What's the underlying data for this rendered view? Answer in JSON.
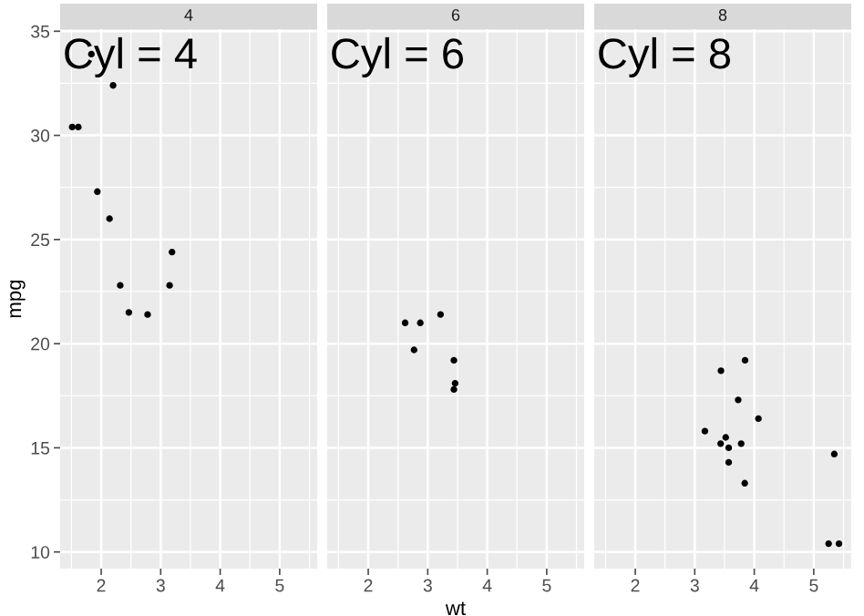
{
  "chart_data": [
    {
      "type": "scatter",
      "title": "4",
      "ylabel": "mpg",
      "annotations": [
        "Cyl = 4"
      ],
      "color": "#000000",
      "marker": "circle",
      "grid": true,
      "tick_labels": "xy",
      "x": [
        2.32,
        3.19,
        3.15,
        2.2,
        1.615,
        1.835,
        2.465,
        1.935,
        2.14,
        1.513,
        2.78
      ],
      "values": [
        22.8,
        24.4,
        22.8,
        32.4,
        30.4,
        33.9,
        21.5,
        27.3,
        26.0,
        30.4,
        21.4
      ],
      "xlim": [
        1.31,
        5.63
      ],
      "xticks": [
        2,
        3,
        4,
        5
      ],
      "ylim": [
        9.2,
        35.1
      ],
      "yticks": [
        10,
        15,
        20,
        25,
        30,
        35
      ]
    },
    {
      "type": "scatter",
      "title": "6",
      "xlabel": "wt",
      "annotations": [
        "Cyl = 6"
      ],
      "color": "#000000",
      "marker": "circle",
      "grid": true,
      "tick_labels": "x",
      "x": [
        2.62,
        2.875,
        3.215,
        3.46,
        3.44,
        3.44,
        2.77
      ],
      "values": [
        21.0,
        21.0,
        21.4,
        18.1,
        19.2,
        17.8,
        19.7
      ],
      "xlim": [
        1.31,
        5.63
      ],
      "xticks": [
        2,
        3,
        4,
        5
      ],
      "ylim": [
        9.2,
        35.1
      ],
      "yticks": [
        10,
        15,
        20,
        25,
        30,
        35
      ]
    },
    {
      "type": "scatter",
      "title": "8",
      "annotations": [
        "Cyl = 8"
      ],
      "color": "#000000",
      "marker": "circle",
      "grid": true,
      "tick_labels": "x",
      "x": [
        3.44,
        3.57,
        4.07,
        3.73,
        3.78,
        5.25,
        5.424,
        5.345,
        3.52,
        3.435,
        3.84,
        3.845,
        3.17,
        3.57
      ],
      "values": [
        18.7,
        14.3,
        16.4,
        17.3,
        15.2,
        10.4,
        10.4,
        14.7,
        15.5,
        15.2,
        13.3,
        19.2,
        15.8,
        15.0
      ],
      "xlim": [
        1.31,
        5.63
      ],
      "xticks": [
        2,
        3,
        4,
        5
      ],
      "ylim": [
        9.2,
        35.1
      ],
      "yticks": [
        10,
        15,
        20,
        25,
        30,
        35
      ]
    }
  ]
}
